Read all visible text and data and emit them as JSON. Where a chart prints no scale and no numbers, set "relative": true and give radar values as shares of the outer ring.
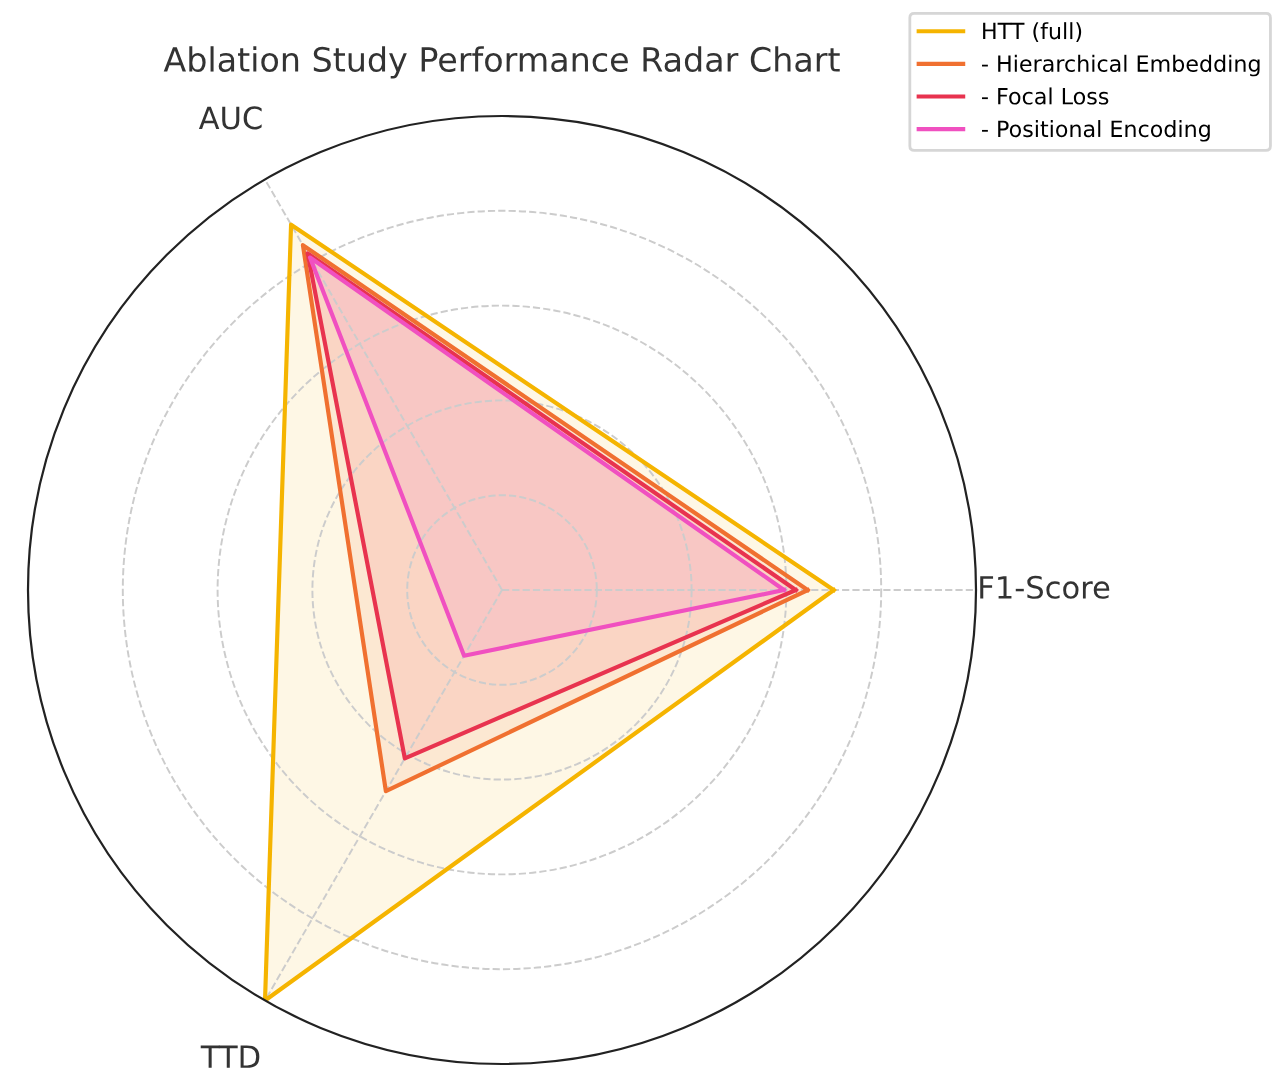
{
  "chart_data": {
    "type": "radar",
    "title": "Ablation Study Performance Radar Chart",
    "categories": [
      "F1-Score",
      "TTD",
      "AUC"
    ],
    "relative": true,
    "grid": true,
    "legend": "top right",
    "line_style": "solid",
    "series": [
      {
        "name": "HTT (full)",
        "color": "#f5b400",
        "values": [
          0.7,
          1.0,
          0.89
        ]
      },
      {
        "name": "- Hierarchical Embedding",
        "color": "#f07030",
        "values": [
          0.645,
          0.49,
          0.84
        ]
      },
      {
        "name": "- Focal Loss",
        "color": "#e8334f",
        "values": [
          0.62,
          0.41,
          0.82
        ]
      },
      {
        "name": "- Positional Encoding",
        "color": "#f050c0",
        "values": [
          0.595,
          0.16,
          0.81
        ]
      }
    ]
  }
}
